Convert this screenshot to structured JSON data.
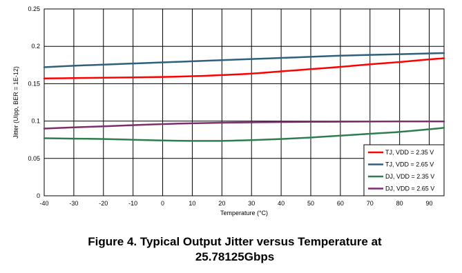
{
  "chart_data": {
    "type": "line",
    "xlabel": "Temperature (°C)",
    "ylabel": "Jitter (UIpp, BER = 1E-12)",
    "xlim": [
      -40,
      95
    ],
    "ylim": [
      0,
      0.25
    ],
    "x_ticks": [
      -40,
      -30,
      -20,
      -10,
      0,
      10,
      20,
      30,
      40,
      50,
      60,
      70,
      80,
      90
    ],
    "y_ticks": [
      0,
      0.05,
      0.1,
      0.15,
      0.2,
      0.25
    ],
    "x_tick_labels": [
      "-40",
      "-30",
      "-20",
      "-10",
      "0",
      "10",
      "20",
      "30",
      "40",
      "50",
      "60",
      "70",
      "80",
      "90"
    ],
    "y_tick_labels": [
      "0",
      "0.05",
      "0.1",
      "0.15",
      "0.2",
      "0.25"
    ],
    "grid": true,
    "legend_position": "bottom-right",
    "series": [
      {
        "name": "TJ, VDD = 2.35 V",
        "color": "#ff0000",
        "x": [
          -40,
          -30,
          -20,
          -10,
          0,
          10,
          20,
          30,
          40,
          50,
          60,
          70,
          80,
          90,
          95
        ],
        "y": [
          0.157,
          0.1575,
          0.158,
          0.1585,
          0.159,
          0.16,
          0.1615,
          0.1635,
          0.1665,
          0.1695,
          0.1725,
          0.176,
          0.179,
          0.1825,
          0.184
        ]
      },
      {
        "name": "TJ, VDD = 2.65 V",
        "color": "#2e5f7b",
        "x": [
          -40,
          -30,
          -20,
          -10,
          0,
          10,
          20,
          30,
          40,
          50,
          60,
          70,
          80,
          90,
          95
        ],
        "y": [
          0.172,
          0.174,
          0.1755,
          0.177,
          0.1785,
          0.18,
          0.1815,
          0.183,
          0.1845,
          0.186,
          0.1875,
          0.1885,
          0.1895,
          0.1905,
          0.191
        ]
      },
      {
        "name": "DJ, VDD = 2.35 V",
        "color": "#2e7d4f",
        "x": [
          -40,
          -30,
          -20,
          -10,
          0,
          10,
          20,
          30,
          40,
          50,
          60,
          70,
          80,
          90,
          95
        ],
        "y": [
          0.077,
          0.0765,
          0.076,
          0.075,
          0.074,
          0.0735,
          0.0735,
          0.0745,
          0.076,
          0.078,
          0.0805,
          0.083,
          0.0855,
          0.089,
          0.091
        ]
      },
      {
        "name": "DJ, VDD = 2.65 V",
        "color": "#7b2d6e",
        "x": [
          -40,
          -30,
          -20,
          -10,
          0,
          10,
          20,
          30,
          40,
          50,
          60,
          70,
          80,
          90,
          95
        ],
        "y": [
          0.09,
          0.0915,
          0.093,
          0.0945,
          0.096,
          0.097,
          0.0978,
          0.0983,
          0.0987,
          0.099,
          0.0992,
          0.0994,
          0.0995,
          0.0995,
          0.0995
        ]
      }
    ]
  },
  "caption": {
    "line1": "Figure 4. Typical Output Jitter versus Temperature at",
    "line2": "25.78125Gbps"
  }
}
